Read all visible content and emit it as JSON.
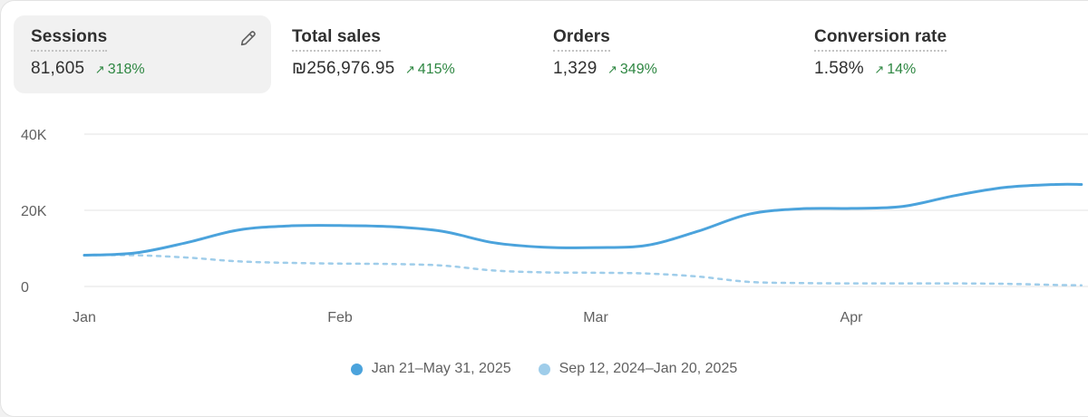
{
  "metrics": [
    {
      "label": "Sessions",
      "value": "81,605",
      "change": "318%",
      "selected": true
    },
    {
      "label": "Total sales",
      "value": "₪256,976.95",
      "change": "415%"
    },
    {
      "label": "Orders",
      "value": "1,329",
      "change": "349%"
    },
    {
      "label": "Conversion rate",
      "value": "1.58%",
      "change": "14%"
    }
  ],
  "colors": {
    "current": "#4ba3dc",
    "previous": "#9fcdea",
    "change_positive": "#2e8742"
  },
  "chart_data": {
    "type": "line",
    "title": "",
    "xlabel": "",
    "ylabel": "",
    "y_ticks": [
      {
        "value": 0,
        "label": "0"
      },
      {
        "value": 20000,
        "label": "20K"
      },
      {
        "value": 40000,
        "label": "40K"
      }
    ],
    "ylim": [
      0,
      40000
    ],
    "x_ticks": [
      "Jan",
      "Feb",
      "Mar",
      "Apr"
    ],
    "x_tick_positions": [
      0,
      1,
      2,
      3
    ],
    "xlim": [
      0,
      3.9
    ],
    "grid": true,
    "legend_position": "bottom",
    "series": [
      {
        "name": "Jan 21–May 31, 2025",
        "style": "solid",
        "x": [
          0,
          0.2,
          0.4,
          0.6,
          0.8,
          1.0,
          1.2,
          1.4,
          1.6,
          1.8,
          2.0,
          2.2,
          2.4,
          2.6,
          2.8,
          3.0,
          3.2,
          3.4,
          3.6,
          3.8,
          3.9
        ],
        "y": [
          8200,
          8800,
          11500,
          14800,
          15900,
          16000,
          15700,
          14500,
          11500,
          10300,
          10200,
          10800,
          14500,
          19000,
          20400,
          20500,
          21000,
          23800,
          26000,
          26800,
          26800
        ]
      },
      {
        "name": "Sep 12, 2024–Jan 20, 2025",
        "style": "dashed",
        "x": [
          0,
          0.2,
          0.4,
          0.6,
          0.8,
          1.0,
          1.2,
          1.4,
          1.6,
          1.8,
          2.0,
          2.2,
          2.4,
          2.6,
          2.8,
          3.0,
          3.2,
          3.4,
          3.6,
          3.8,
          3.9
        ],
        "y": [
          8200,
          8200,
          7600,
          6600,
          6200,
          6000,
          5900,
          5500,
          4200,
          3700,
          3600,
          3400,
          2600,
          1200,
          900,
          800,
          800,
          800,
          700,
          400,
          300
        ]
      }
    ]
  }
}
